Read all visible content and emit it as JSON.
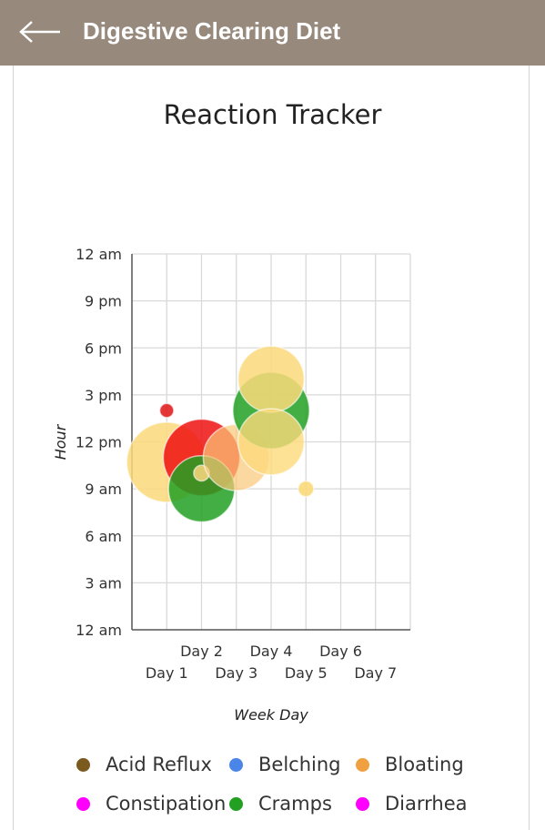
{
  "header": {
    "title": "Digestive Clearing Diet",
    "back_icon": "arrow-left-icon"
  },
  "chart_data": {
    "type": "scatter",
    "title": "Reaction Tracker",
    "xlabel": "Week Day",
    "ylabel": "Hour",
    "categories": [
      "Day 1",
      "Day 2",
      "Day 3",
      "Day 4",
      "Day 5",
      "Day 6",
      "Day 7"
    ],
    "y_ticks": [
      "12 am",
      "3 am",
      "6 am",
      "9 am",
      "12 pm",
      "3 pm",
      "6 pm",
      "9 pm",
      "12 am"
    ],
    "xlim": [
      0,
      8
    ],
    "ylim": [
      0,
      24
    ],
    "grid": true,
    "legend_position": "bottom",
    "series": [
      {
        "name": "Acid Reflux",
        "color": "#7a5a1e",
        "points": []
      },
      {
        "name": "Belching",
        "color": "#4a86e8",
        "points": []
      },
      {
        "name": "Bloating",
        "color": "#f0a040",
        "points": []
      },
      {
        "name": "Constipation",
        "color": "#ff00ff",
        "points": []
      },
      {
        "name": "Cramps",
        "color": "#22a022",
        "points": []
      },
      {
        "name": "Diarrhea",
        "color": "#ff00ff",
        "points": []
      }
    ],
    "bubbles": [
      {
        "x": 1.0,
        "y": 10.7,
        "size": 2.3,
        "color": "#fcd97a",
        "opacity": 0.85
      },
      {
        "x": 1.0,
        "y": 14.0,
        "size": 0.4,
        "color": "#e02020",
        "opacity": 0.9
      },
      {
        "x": 2.0,
        "y": 11.0,
        "size": 2.2,
        "color": "#ee1010",
        "opacity": 0.85
      },
      {
        "x": 2.0,
        "y": 9.0,
        "size": 1.9,
        "color": "#22a022",
        "opacity": 0.85
      },
      {
        "x": 2.0,
        "y": 10.0,
        "size": 0.45,
        "color": "#f2d37a",
        "opacity": 0.9
      },
      {
        "x": 3.0,
        "y": 11.0,
        "size": 1.9,
        "color": "#f9c777",
        "opacity": 0.7
      },
      {
        "x": 4.0,
        "y": 14.0,
        "size": 2.2,
        "color": "#22a022",
        "opacity": 0.85
      },
      {
        "x": 4.0,
        "y": 16.0,
        "size": 1.9,
        "color": "#fcd97a",
        "opacity": 0.85
      },
      {
        "x": 4.0,
        "y": 12.0,
        "size": 1.9,
        "color": "#fcd97a",
        "opacity": 0.8
      },
      {
        "x": 5.0,
        "y": 9.0,
        "size": 0.45,
        "color": "#fcd97a",
        "opacity": 0.9
      }
    ]
  }
}
